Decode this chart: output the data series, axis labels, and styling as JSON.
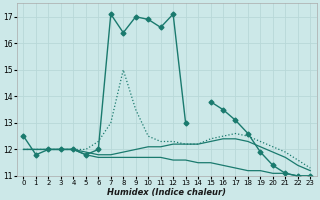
{
  "title": "",
  "xlabel": "Humidex (Indice chaleur)",
  "background_color": "#cce8e8",
  "grid_color": "#b8d8d8",
  "line_color": "#1a7a6e",
  "xlim": [
    -0.5,
    23.5
  ],
  "ylim": [
    11,
    17.5
  ],
  "xticks": [
    0,
    1,
    2,
    3,
    4,
    5,
    6,
    7,
    8,
    9,
    10,
    11,
    12,
    13,
    14,
    15,
    16,
    17,
    18,
    19,
    20,
    21,
    22,
    23
  ],
  "yticks": [
    11,
    12,
    13,
    14,
    15,
    16,
    17
  ],
  "series": [
    {
      "x": [
        0,
        1,
        2,
        3,
        4,
        5,
        6,
        7,
        8,
        9,
        10,
        11,
        12,
        13,
        14,
        15,
        16,
        17,
        18,
        19,
        20,
        21,
        22,
        23
      ],
      "y": [
        12.5,
        11.8,
        12.0,
        12.0,
        12.0,
        11.8,
        12.0,
        17.1,
        16.4,
        17.0,
        16.9,
        16.6,
        17.1,
        13.0,
        null,
        13.8,
        13.5,
        13.1,
        12.6,
        11.9,
        11.4,
        11.1,
        11.0,
        11.0
      ],
      "style": "-",
      "marker": "D",
      "markersize": 2.5,
      "linewidth": 1.0
    },
    {
      "x": [
        0,
        1,
        2,
        3,
        4,
        5,
        6,
        7,
        8,
        9,
        10,
        11,
        12,
        13,
        14,
        15,
        16,
        17,
        18,
        19,
        20,
        21,
        22,
        23
      ],
      "y": [
        12.0,
        12.0,
        12.0,
        12.0,
        12.0,
        12.0,
        12.3,
        13.0,
        15.0,
        13.5,
        12.5,
        12.3,
        12.3,
        12.2,
        12.2,
        12.4,
        12.5,
        12.6,
        12.5,
        12.3,
        12.1,
        11.9,
        11.6,
        11.3
      ],
      "style": ":",
      "marker": null,
      "markersize": 0,
      "linewidth": 0.9
    },
    {
      "x": [
        0,
        1,
        2,
        3,
        4,
        5,
        6,
        7,
        8,
        9,
        10,
        11,
        12,
        13,
        14,
        15,
        16,
        17,
        18,
        19,
        20,
        21,
        22,
        23
      ],
      "y": [
        12.0,
        12.0,
        12.0,
        12.0,
        12.0,
        11.9,
        11.8,
        11.8,
        11.9,
        12.0,
        12.1,
        12.1,
        12.2,
        12.2,
        12.2,
        12.3,
        12.4,
        12.4,
        12.3,
        12.1,
        11.9,
        11.7,
        11.4,
        11.2
      ],
      "style": "-",
      "marker": null,
      "markersize": 0,
      "linewidth": 0.9
    },
    {
      "x": [
        0,
        1,
        2,
        3,
        4,
        5,
        6,
        7,
        8,
        9,
        10,
        11,
        12,
        13,
        14,
        15,
        16,
        17,
        18,
        19,
        20,
        21,
        22,
        23
      ],
      "y": [
        12.0,
        12.0,
        12.0,
        12.0,
        12.0,
        11.8,
        11.7,
        11.7,
        11.7,
        11.7,
        11.7,
        11.7,
        11.6,
        11.6,
        11.5,
        11.5,
        11.4,
        11.3,
        11.2,
        11.2,
        11.1,
        11.1,
        11.0,
        11.0
      ],
      "style": "-",
      "marker": null,
      "markersize": 0,
      "linewidth": 0.9
    }
  ]
}
